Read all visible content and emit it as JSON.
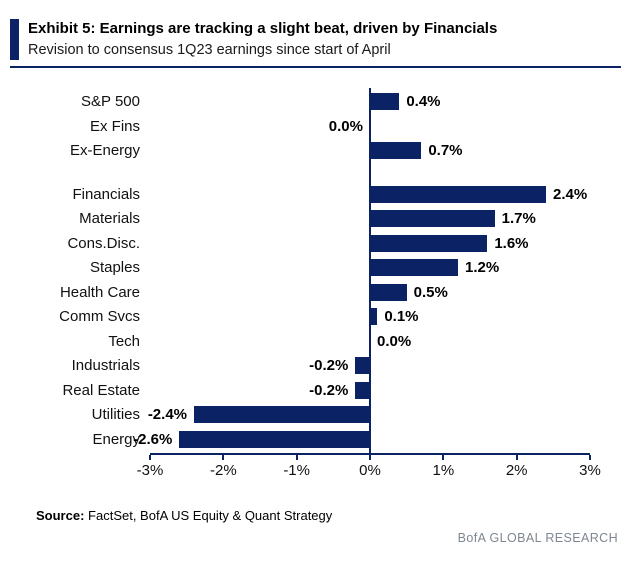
{
  "header": {
    "title": "Exhibit 5: Earnings are tracking a slight beat, driven by Financials",
    "subtitle": "Revision to consensus 1Q23 earnings since start of April"
  },
  "chart_data": {
    "type": "bar",
    "orientation": "horizontal",
    "title": "Revision to consensus 1Q23 earnings since start of April",
    "xlabel": "",
    "ylabel": "",
    "xlim": [
      -3,
      3
    ],
    "x_ticks": [
      "-3%",
      "-2%",
      "-1%",
      "0%",
      "1%",
      "2%",
      "3%"
    ],
    "grid": false,
    "legend": false,
    "rows": [
      {
        "label": "S&P 500",
        "value": 0.4,
        "display": "0.4%",
        "label_side": "right"
      },
      {
        "label": "Ex Fins",
        "value": 0.0,
        "display": "0.0%",
        "label_side": "left"
      },
      {
        "label": "Ex-Energy",
        "value": 0.7,
        "display": "0.7%",
        "label_side": "right"
      },
      {
        "spacer": true
      },
      {
        "label": "Financials",
        "value": 2.4,
        "display": "2.4%",
        "label_side": "right"
      },
      {
        "label": "Materials",
        "value": 1.7,
        "display": "1.7%",
        "label_side": "right"
      },
      {
        "label": "Cons.Disc.",
        "value": 1.6,
        "display": "1.6%",
        "label_side": "right"
      },
      {
        "label": "Staples",
        "value": 1.2,
        "display": "1.2%",
        "label_side": "right"
      },
      {
        "label": "Health Care",
        "value": 0.5,
        "display": "0.5%",
        "label_side": "right"
      },
      {
        "label": "Comm Svcs",
        "value": 0.1,
        "display": "0.1%",
        "label_side": "right"
      },
      {
        "label": "Tech",
        "value": 0.0,
        "display": "0.0%",
        "label_side": "right"
      },
      {
        "label": "Industrials",
        "value": -0.2,
        "display": "-0.2%",
        "label_side": "left"
      },
      {
        "label": "Real Estate",
        "value": -0.2,
        "display": "-0.2%",
        "label_side": "left"
      },
      {
        "label": "Utilities",
        "value": -2.4,
        "display": "-2.4%",
        "label_side": "left"
      },
      {
        "label": "Energy",
        "value": -2.6,
        "display": "-2.6%",
        "label_side": "left"
      }
    ]
  },
  "footer": {
    "source_label": "Source:",
    "source_text": "FactSet, BofA US Equity & Quant Strategy",
    "brand": "BofA GLOBAL RESEARCH"
  },
  "colors": {
    "navy": "#0b2265",
    "brand_gray": "#7e8790"
  }
}
